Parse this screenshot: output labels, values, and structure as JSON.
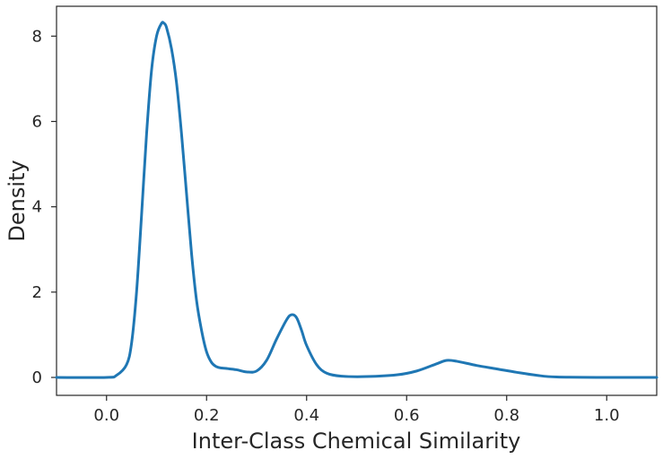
{
  "chart_data": {
    "type": "line",
    "title": "",
    "xlabel": "Inter-Class Chemical Similarity",
    "ylabel": "Density",
    "xlim": [
      -0.1,
      1.1
    ],
    "ylim": [
      -0.42,
      8.7
    ],
    "grid": false,
    "xticks": [
      0.0,
      0.2,
      0.4,
      0.6,
      0.8,
      1.0
    ],
    "xtick_labels": [
      "0.0",
      "0.2",
      "0.4",
      "0.6",
      "0.8",
      "1.0"
    ],
    "yticks": [
      0,
      2,
      4,
      6,
      8
    ],
    "ytick_labels": [
      "0",
      "2",
      "4",
      "6",
      "8"
    ],
    "series": [
      {
        "color": "#1f77b4",
        "x": [
          -0.1,
          0.0,
          0.02,
          0.04,
          0.05,
          0.06,
          0.07,
          0.08,
          0.09,
          0.1,
          0.11,
          0.115,
          0.12,
          0.13,
          0.14,
          0.15,
          0.16,
          0.17,
          0.18,
          0.19,
          0.2,
          0.21,
          0.22,
          0.23,
          0.24,
          0.26,
          0.28,
          0.3,
          0.32,
          0.34,
          0.36,
          0.37,
          0.38,
          0.39,
          0.4,
          0.42,
          0.44,
          0.47,
          0.52,
          0.58,
          0.62,
          0.66,
          0.68,
          0.7,
          0.74,
          0.78,
          0.82,
          0.86,
          0.9,
          1.0,
          1.1
        ],
        "y": [
          0.0,
          0.0,
          0.05,
          0.3,
          0.8,
          2.0,
          3.8,
          5.7,
          7.2,
          8.0,
          8.3,
          8.3,
          8.2,
          7.7,
          6.9,
          5.7,
          4.3,
          2.9,
          1.8,
          1.1,
          0.6,
          0.35,
          0.25,
          0.22,
          0.21,
          0.18,
          0.13,
          0.15,
          0.4,
          0.9,
          1.35,
          1.47,
          1.4,
          1.1,
          0.75,
          0.3,
          0.1,
          0.03,
          0.02,
          0.06,
          0.15,
          0.32,
          0.4,
          0.38,
          0.28,
          0.2,
          0.12,
          0.05,
          0.01,
          0.0,
          0.0
        ]
      }
    ]
  }
}
